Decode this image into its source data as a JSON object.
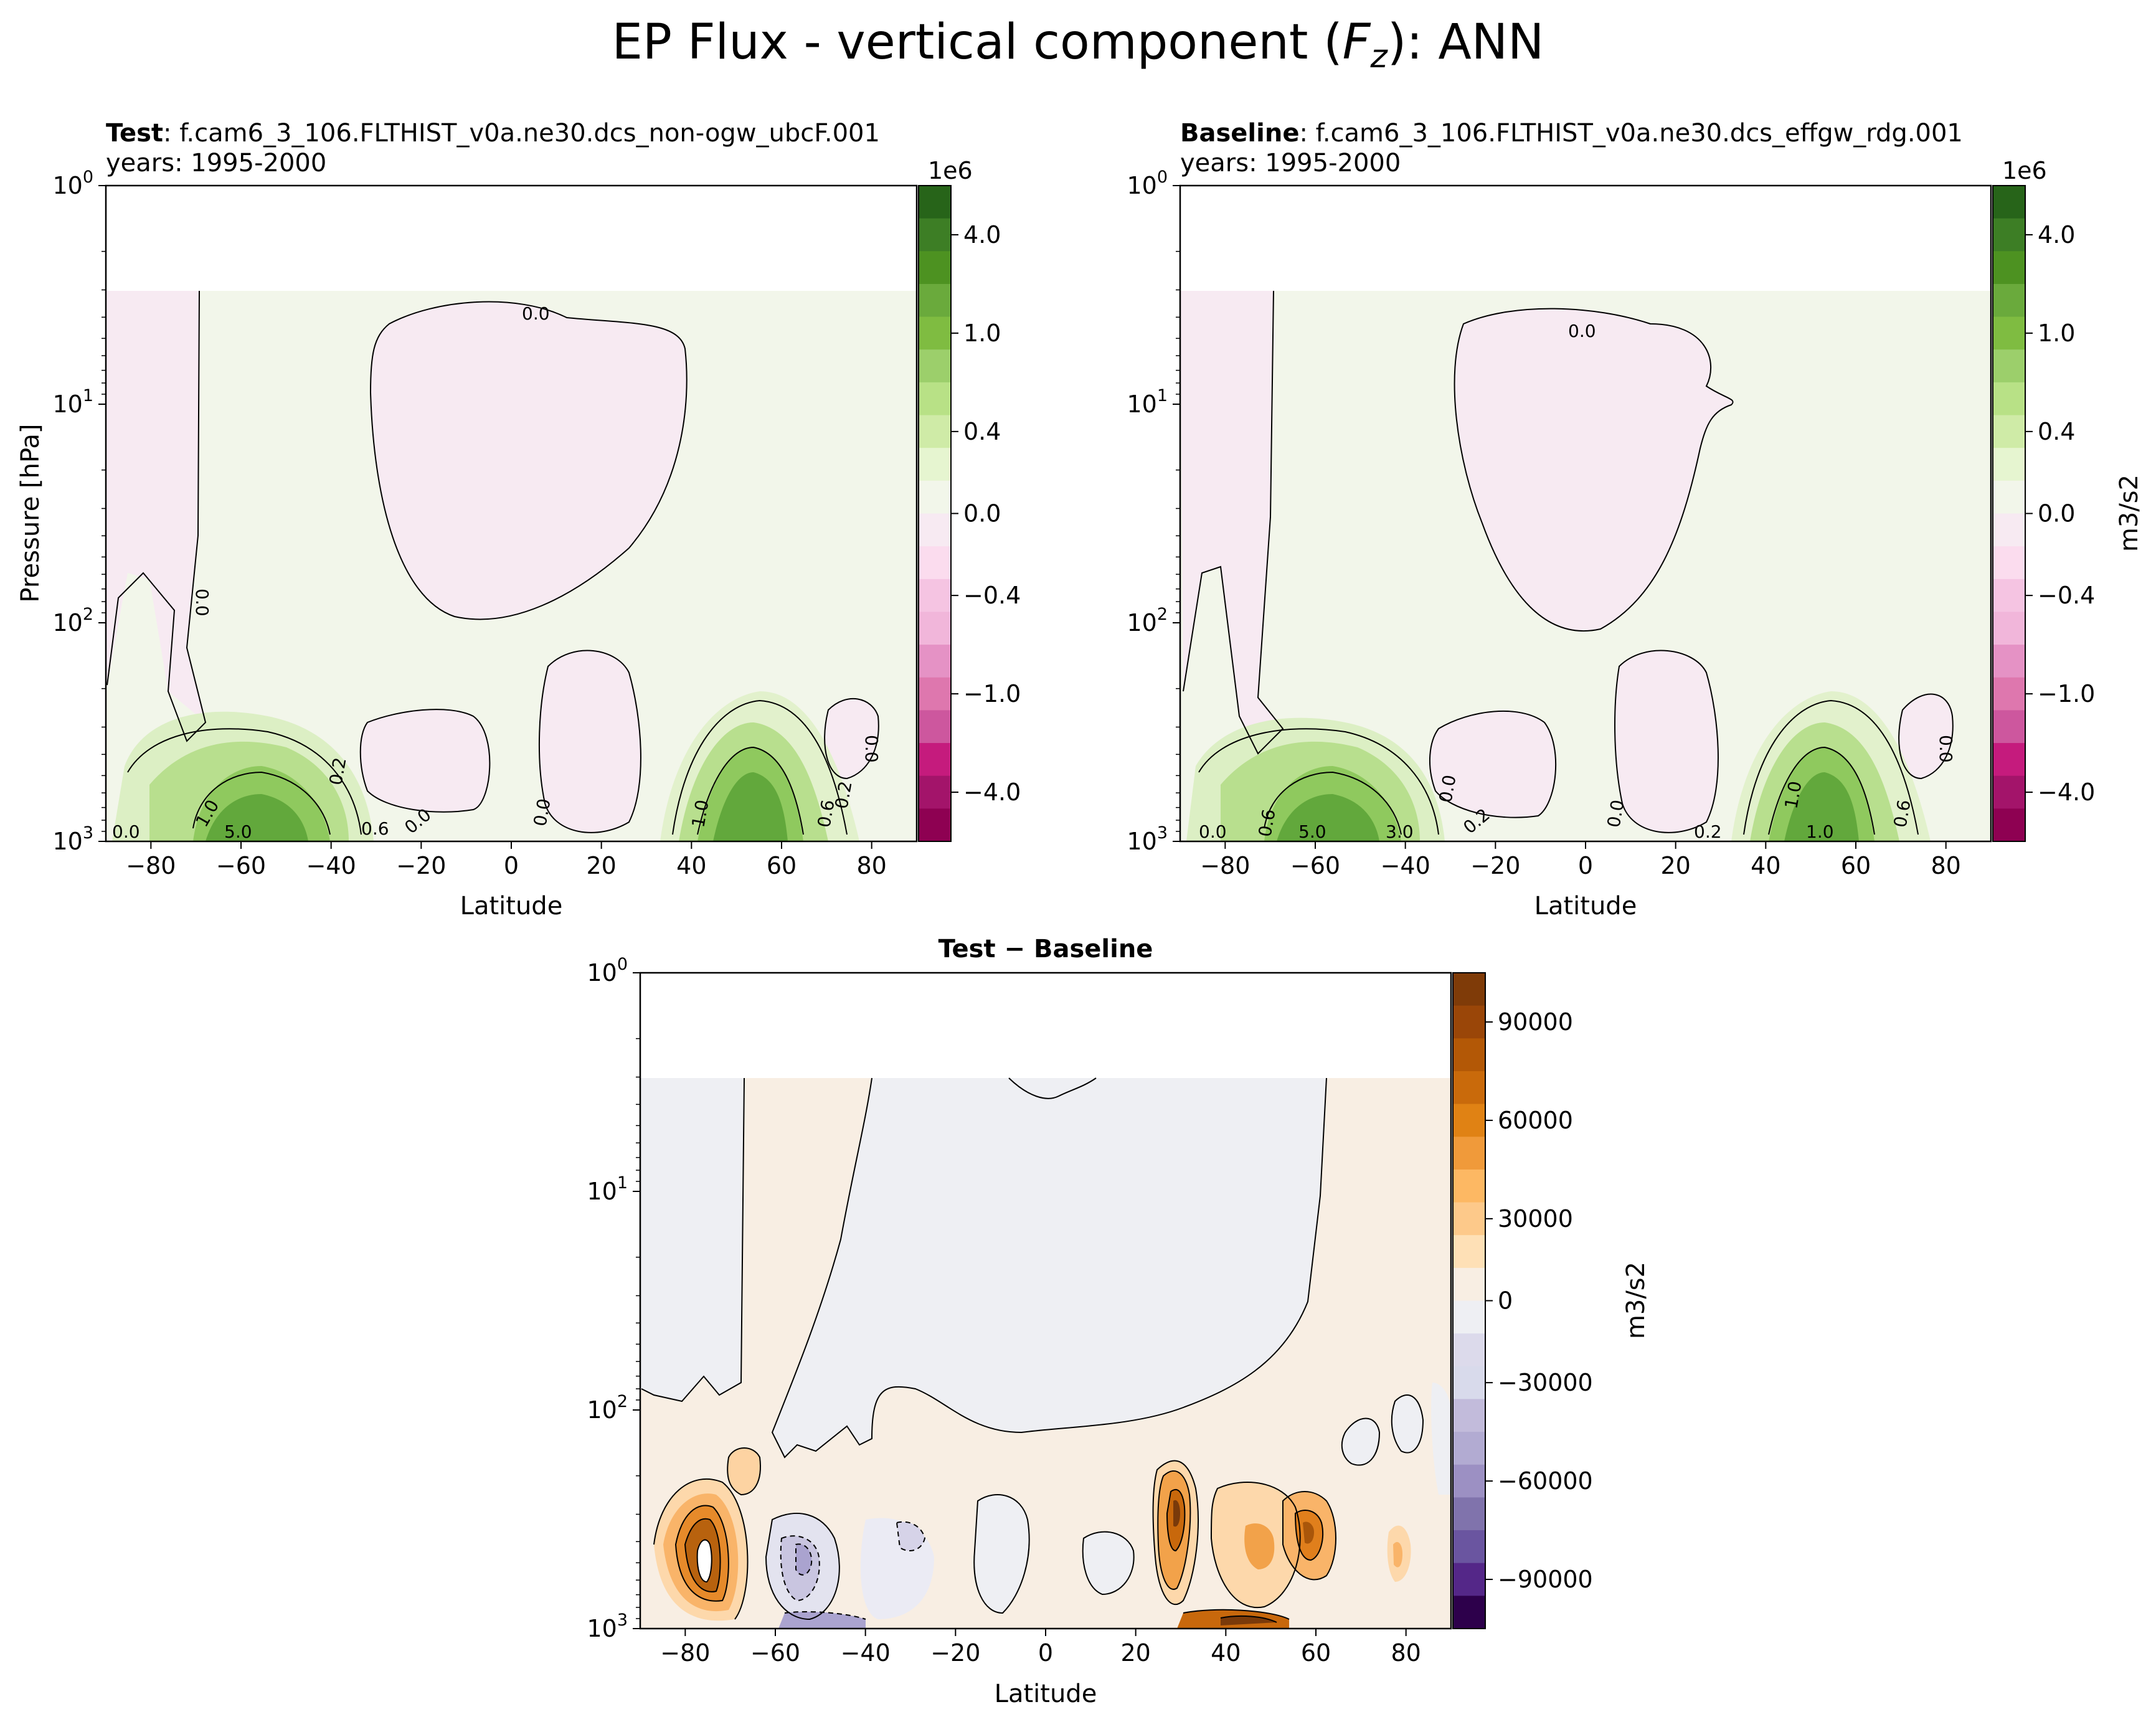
{
  "figure": {
    "title": "EP Flux - vertical component (Fz): ANN",
    "title_prefix": "EP Flux - vertical component (",
    "title_var": "F",
    "title_sub": "z",
    "title_suffix": "): ANN"
  },
  "chart_data": [
    {
      "type": "heatmap",
      "panel": "test",
      "title_bold": "Test",
      "title_rest": ": f.cam6_3_106.FLTHIST_v0a.ne30.dcs_non-ogw_ubcF.001",
      "subtitle": "years: 1995-2000",
      "xlabel": "Latitude",
      "ylabel": "Pressure [hPa]",
      "xlim": [
        -90,
        90
      ],
      "ylim": [
        1000,
        1
      ],
      "yscale": "log",
      "xticks": [
        -80,
        -60,
        -40,
        -20,
        0,
        20,
        40,
        60,
        80
      ],
      "xtick_labels": [
        "−80",
        "−60",
        "−40",
        "−20",
        "0",
        "20",
        "40",
        "60",
        "80"
      ],
      "yticks": [
        1,
        10,
        100,
        1000
      ],
      "ytick_labels": [
        {
          "base": "10",
          "exp": "0"
        },
        {
          "base": "10",
          "exp": "1"
        },
        {
          "base": "10",
          "exp": "2"
        },
        {
          "base": "10",
          "exp": "3"
        }
      ],
      "colorbar": {
        "ticks": [
          "4.0",
          "1.0",
          "0.4",
          "0.0",
          "−0.4",
          "−1.0",
          "−4.0"
        ],
        "offset_text": "1e6",
        "label": "",
        "colormap": "PiYG"
      },
      "contour_labels": [
        "0.0",
        "0.0",
        "0.2",
        "0.6",
        "1.0",
        "0.0",
        "0.0",
        "0.2",
        "0.6",
        "1.0",
        "0.0",
        "0.0",
        "5.0"
      ]
    },
    {
      "type": "heatmap",
      "panel": "baseline",
      "title_bold": "Baseline",
      "title_rest": ": f.cam6_3_106.FLTHIST_v0a.ne30.dcs_effgw_rdg.001",
      "subtitle": "years: 1995-2000",
      "xlabel": "Latitude",
      "ylabel": "",
      "xlim": [
        -90,
        90
      ],
      "ylim": [
        1000,
        1
      ],
      "yscale": "log",
      "xticks": [
        -80,
        -60,
        -40,
        -20,
        0,
        20,
        40,
        60,
        80
      ],
      "xtick_labels": [
        "−80",
        "−60",
        "−40",
        "−20",
        "0",
        "20",
        "40",
        "60",
        "80"
      ],
      "yticks": [
        1,
        10,
        100,
        1000
      ],
      "ytick_labels": [
        {
          "base": "10",
          "exp": "0"
        },
        {
          "base": "10",
          "exp": "1"
        },
        {
          "base": "10",
          "exp": "2"
        },
        {
          "base": "10",
          "exp": "3"
        }
      ],
      "colorbar": {
        "ticks": [
          "4.0",
          "1.0",
          "0.4",
          "0.0",
          "−0.4",
          "−1.0",
          "−4.0"
        ],
        "offset_text": "1e6",
        "label": "m3/s2",
        "colormap": "PiYG"
      },
      "contour_labels": [
        "0.0",
        "0.0",
        "0.0",
        "0.6",
        "1.0",
        "0.2",
        "0.0",
        "0.0",
        "0.2",
        "0.6",
        "1.0",
        "0.0",
        "3.0",
        "5.0"
      ]
    },
    {
      "type": "heatmap",
      "panel": "difference",
      "title_bold": "Test − Baseline",
      "title_rest": "",
      "subtitle": "",
      "xlabel": "Latitude",
      "ylabel": "",
      "xlim": [
        -90,
        90
      ],
      "ylim": [
        1000,
        1
      ],
      "yscale": "log",
      "xticks": [
        -80,
        -60,
        -40,
        -20,
        0,
        20,
        40,
        60,
        80
      ],
      "xtick_labels": [
        "−80",
        "−60",
        "−40",
        "−20",
        "0",
        "20",
        "40",
        "60",
        "80"
      ],
      "yticks": [
        1,
        10,
        100,
        1000
      ],
      "ytick_labels": [
        {
          "base": "10",
          "exp": "0"
        },
        {
          "base": "10",
          "exp": "1"
        },
        {
          "base": "10",
          "exp": "2"
        },
        {
          "base": "10",
          "exp": "3"
        }
      ],
      "colorbar": {
        "ticks": [
          "90000",
          "60000",
          "30000",
          "0",
          "−30000",
          "−60000",
          "−90000"
        ],
        "offset_text": "",
        "label": "m3/s2",
        "colormap": "PuOr"
      }
    }
  ]
}
